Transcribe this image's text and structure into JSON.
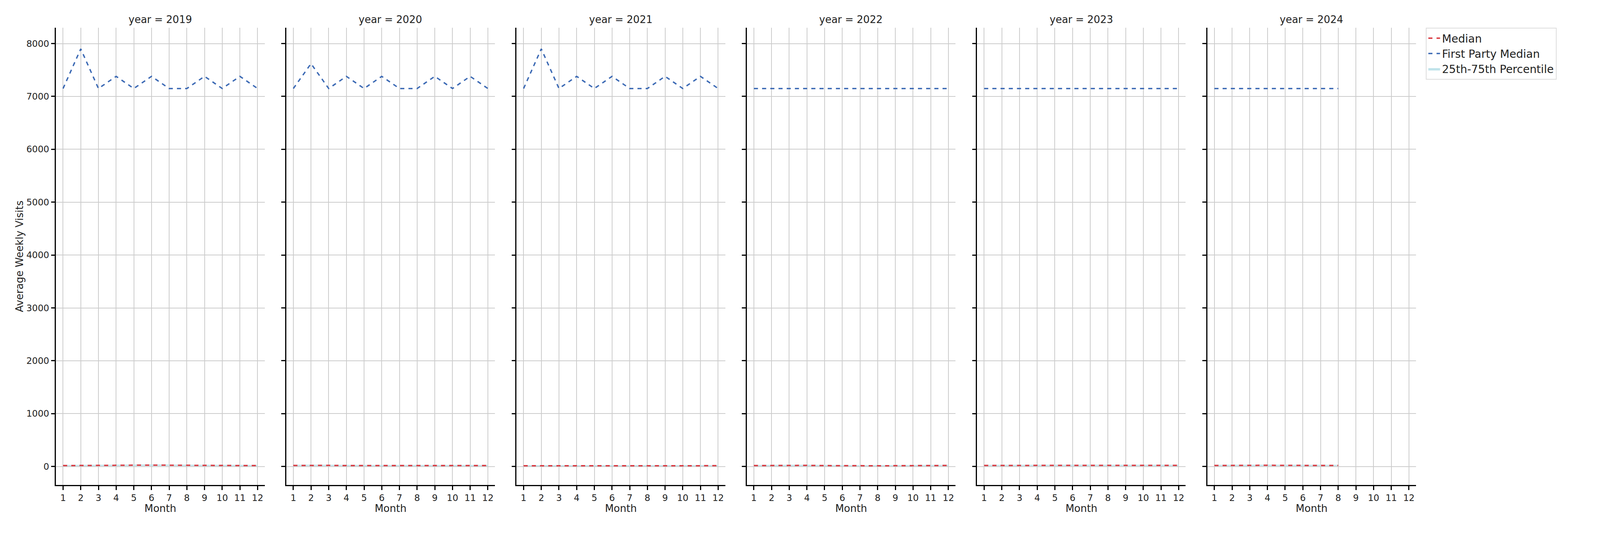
{
  "chart_data": [
    {
      "type": "line",
      "title": "year = 2019",
      "x_label": "Month",
      "y_label": "Average Weekly Visits",
      "x": [
        1,
        2,
        3,
        4,
        5,
        6,
        7,
        8,
        9,
        10,
        11,
        12
      ],
      "xlim": [
        0.6,
        12.4
      ],
      "xticks": [
        1,
        2,
        3,
        4,
        5,
        6,
        7,
        8,
        9,
        10,
        11,
        12
      ],
      "ylim": [
        -350,
        8300
      ],
      "yticks": [
        0,
        1000,
        2000,
        3000,
        4000,
        5000,
        6000,
        7000,
        8000
      ],
      "grid": true,
      "series": [
        {
          "name": "Median",
          "color": "#d9363e",
          "line_style": "dashed",
          "values": [
            18,
            20,
            24,
            25,
            26,
            27,
            25,
            22,
            20,
            19,
            19,
            18
          ]
        },
        {
          "name": "First Party Median",
          "color": "#3b69b4",
          "line_style": "dashed",
          "values": [
            7150,
            7900,
            7150,
            7380,
            7150,
            7380,
            7150,
            7150,
            7380,
            7150,
            7380,
            7150
          ]
        },
        {
          "name": "25th-75th Percentile",
          "type": "band",
          "color": "#bfe3ea",
          "lower": [
            8,
            9,
            11,
            11,
            12,
            12,
            11,
            10,
            9,
            9,
            9,
            8
          ],
          "upper": [
            30,
            32,
            36,
            37,
            38,
            39,
            37,
            34,
            32,
            31,
            31,
            30
          ]
        }
      ]
    },
    {
      "type": "line",
      "title": "year = 2020",
      "x_label": "Month",
      "x": [
        1,
        2,
        3,
        4,
        5,
        6,
        7,
        8,
        9,
        10,
        11,
        12
      ],
      "xlim": [
        0.6,
        12.4
      ],
      "xticks": [
        1,
        2,
        3,
        4,
        5,
        6,
        7,
        8,
        9,
        10,
        11,
        12
      ],
      "ylim": [
        -350,
        8300
      ],
      "yticks": [
        0,
        1000,
        2000,
        3000,
        4000,
        5000,
        6000,
        7000,
        8000
      ],
      "grid": true,
      "tick_labels": "x",
      "series": [
        {
          "name": "Median",
          "color": "#d9363e",
          "line_style": "dashed",
          "values": [
            20,
            24,
            22,
            18,
            17,
            18,
            18,
            17,
            17,
            18,
            18,
            18
          ]
        },
        {
          "name": "First Party Median",
          "color": "#3b69b4",
          "line_style": "dashed",
          "values": [
            7150,
            7620,
            7150,
            7380,
            7150,
            7380,
            7150,
            7150,
            7380,
            7150,
            7380,
            7150
          ]
        },
        {
          "name": "25th-75th Percentile",
          "type": "band",
          "color": "#bfe3ea",
          "lower": [
            9,
            11,
            10,
            8,
            8,
            8,
            8,
            8,
            8,
            8,
            8,
            8
          ],
          "upper": [
            32,
            36,
            34,
            30,
            29,
            30,
            30,
            29,
            29,
            30,
            30,
            30
          ]
        }
      ]
    },
    {
      "type": "line",
      "title": "year = 2021",
      "x_label": "Month",
      "x": [
        1,
        2,
        3,
        4,
        5,
        6,
        7,
        8,
        9,
        10,
        11,
        12
      ],
      "xlim": [
        0.6,
        12.4
      ],
      "xticks": [
        1,
        2,
        3,
        4,
        5,
        6,
        7,
        8,
        9,
        10,
        11,
        12
      ],
      "ylim": [
        -350,
        8300
      ],
      "yticks": [
        0,
        1000,
        2000,
        3000,
        4000,
        5000,
        6000,
        7000,
        8000
      ],
      "grid": true,
      "tick_labels": "x",
      "series": [
        {
          "name": "Median",
          "color": "#d9363e",
          "line_style": "dashed",
          "values": [
            14,
            14,
            15,
            16,
            16,
            15,
            14,
            13,
            12,
            13,
            15,
            16
          ]
        },
        {
          "name": "First Party Median",
          "color": "#3b69b4",
          "line_style": "dashed",
          "values": [
            7150,
            7900,
            7150,
            7380,
            7150,
            7380,
            7150,
            7150,
            7380,
            7150,
            7380,
            7150
          ]
        },
        {
          "name": "25th-75th Percentile",
          "type": "band",
          "color": "#bfe3ea",
          "lower": [
            6,
            6,
            7,
            7,
            7,
            7,
            6,
            6,
            5,
            6,
            7,
            7
          ],
          "upper": [
            26,
            26,
            27,
            28,
            28,
            27,
            26,
            25,
            24,
            25,
            27,
            28
          ]
        }
      ]
    },
    {
      "type": "line",
      "title": "year = 2022",
      "x_label": "Month",
      "x": [
        1,
        2,
        3,
        4,
        5,
        6,
        7,
        8,
        9,
        10,
        11,
        12
      ],
      "xlim": [
        0.6,
        12.4
      ],
      "xticks": [
        1,
        2,
        3,
        4,
        5,
        6,
        7,
        8,
        9,
        10,
        11,
        12
      ],
      "ylim": [
        -350,
        8300
      ],
      "yticks": [
        0,
        1000,
        2000,
        3000,
        4000,
        5000,
        6000,
        7000,
        8000
      ],
      "grid": true,
      "tick_labels": "x",
      "series": [
        {
          "name": "Median",
          "color": "#d9363e",
          "line_style": "dashed",
          "values": [
            18,
            20,
            24,
            22,
            18,
            15,
            14,
            15,
            16,
            18,
            20,
            20
          ]
        },
        {
          "name": "First Party Median",
          "color": "#3b69b4",
          "line_style": "dashed",
          "values": [
            7150,
            7150,
            7150,
            7150,
            7150,
            7150,
            7150,
            7150,
            7150,
            7150,
            7150,
            7150
          ]
        },
        {
          "name": "25th-75th Percentile",
          "type": "band",
          "color": "#bfe3ea",
          "lower": [
            8,
            9,
            11,
            10,
            8,
            7,
            6,
            7,
            7,
            8,
            9,
            9
          ],
          "upper": [
            30,
            32,
            36,
            34,
            30,
            27,
            26,
            27,
            28,
            30,
            32,
            32
          ]
        }
      ]
    },
    {
      "type": "line",
      "title": "year = 2023",
      "x_label": "Month",
      "x": [
        1,
        2,
        3,
        4,
        5,
        6,
        7,
        8,
        9,
        10,
        11,
        12
      ],
      "xlim": [
        0.6,
        12.4
      ],
      "xticks": [
        1,
        2,
        3,
        4,
        5,
        6,
        7,
        8,
        9,
        10,
        11,
        12
      ],
      "ylim": [
        -350,
        8300
      ],
      "yticks": [
        0,
        1000,
        2000,
        3000,
        4000,
        5000,
        6000,
        7000,
        8000
      ],
      "grid": true,
      "tick_labels": "x",
      "series": [
        {
          "name": "Median",
          "color": "#d9363e",
          "line_style": "dashed",
          "values": [
            20,
            21,
            24,
            23,
            22,
            22,
            23,
            22,
            21,
            21,
            22,
            22
          ]
        },
        {
          "name": "First Party Median",
          "color": "#3b69b4",
          "line_style": "dashed",
          "values": [
            7150,
            7150,
            7150,
            7150,
            7150,
            7150,
            7150,
            7150,
            7150,
            7150,
            7150,
            7150
          ]
        },
        {
          "name": "25th-75th Percentile",
          "type": "band",
          "color": "#bfe3ea",
          "lower": [
            9,
            9,
            11,
            10,
            10,
            10,
            10,
            10,
            9,
            9,
            10,
            10
          ],
          "upper": [
            32,
            33,
            36,
            35,
            34,
            34,
            35,
            34,
            33,
            33,
            34,
            34
          ]
        }
      ]
    },
    {
      "type": "line",
      "title": "year = 2024",
      "x_label": "Month",
      "x": [
        1,
        2,
        3,
        4,
        5,
        6,
        7,
        8,
        9,
        10,
        11,
        12
      ],
      "xlim": [
        0.6,
        12.4
      ],
      "xticks": [
        1,
        2,
        3,
        4,
        5,
        6,
        7,
        8,
        9,
        10,
        11,
        12
      ],
      "ylim": [
        -350,
        8300
      ],
      "yticks": [
        0,
        1000,
        2000,
        3000,
        4000,
        5000,
        6000,
        7000,
        8000
      ],
      "grid": true,
      "tick_labels": "x",
      "legend": "upper right",
      "series": [
        {
          "name": "Median",
          "color": "#d9363e",
          "line_style": "dashed",
          "values": [
            20,
            22,
            25,
            24,
            22,
            22,
            21,
            20,
            null,
            null,
            null,
            null
          ]
        },
        {
          "name": "First Party Median",
          "color": "#3b69b4",
          "line_style": "dashed",
          "values": [
            7150,
            7150,
            7150,
            7150,
            7150,
            7150,
            7150,
            7150,
            null,
            null,
            null,
            null
          ]
        },
        {
          "name": "25th-75th Percentile",
          "type": "band",
          "color": "#bfe3ea",
          "lower": [
            9,
            10,
            11,
            11,
            10,
            10,
            9,
            9,
            null,
            null,
            null,
            null
          ],
          "upper": [
            32,
            34,
            37,
            36,
            34,
            34,
            33,
            32,
            null,
            null,
            null,
            null
          ]
        }
      ]
    }
  ]
}
